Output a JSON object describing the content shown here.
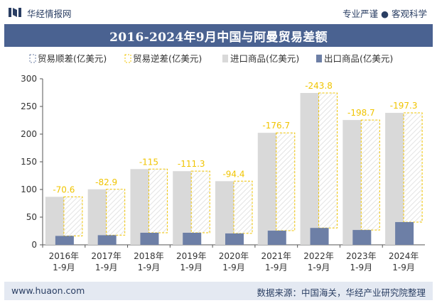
{
  "header": {
    "brand": "华经情报网",
    "slogan": "专业严谨 ● 客观科学"
  },
  "footer": {
    "website": "www.huaon.com",
    "source": "数据来源：中国海关，华经产业研究院整理"
  },
  "colors": {
    "title_bg": "#4a6291",
    "import_bar": "#d9d9d9",
    "export_bar": "#6d7fa6",
    "deficit_border": "#f0c400",
    "deficit_label": "#f0c400",
    "surplus_border": "#6d7fa6"
  },
  "chart_data": {
    "type": "bar",
    "title": "2016-2024年9月中国与阿曼贸易差额",
    "categories": [
      "2016年\n1-9月",
      "2017年\n1-9月",
      "2018年\n1-9月",
      "2019年\n1-9月",
      "2020年\n1-9月",
      "2021年\n1-9月",
      "2022年\n1-9月",
      "2023年\n1-9月",
      "2024年\n1-9月"
    ],
    "series": [
      {
        "name": "贸易顺差(亿美元)",
        "values": [
          null,
          null,
          null,
          null,
          null,
          null,
          null,
          null,
          null
        ]
      },
      {
        "name": "贸易逆差(亿美元)",
        "values": [
          -70.6,
          -82.9,
          -115,
          -111.3,
          -94.4,
          -176.7,
          -243.8,
          -198.7,
          -197.3
        ]
      },
      {
        "name": "进口商品(亿美元)",
        "values": [
          86.7,
          100.3,
          136.8,
          133.1,
          115.0,
          202.3,
          274.3,
          225.5,
          238.4
        ]
      },
      {
        "name": "出口商品(亿美元)",
        "values": [
          16.1,
          17.4,
          21.8,
          21.8,
          20.6,
          25.6,
          30.5,
          26.8,
          41.1
        ]
      }
    ],
    "deficit_labels": [
      "-70.6",
      "-82.9",
      "-115",
      "-111.3",
      "-94.4",
      "-176.7",
      "-243.8",
      "-198.7",
      "-197.3"
    ],
    "ylim": [
      0,
      300
    ],
    "yticks": [
      0,
      50,
      100,
      150,
      200,
      250,
      300
    ],
    "grid": false,
    "legend": "top-left"
  }
}
